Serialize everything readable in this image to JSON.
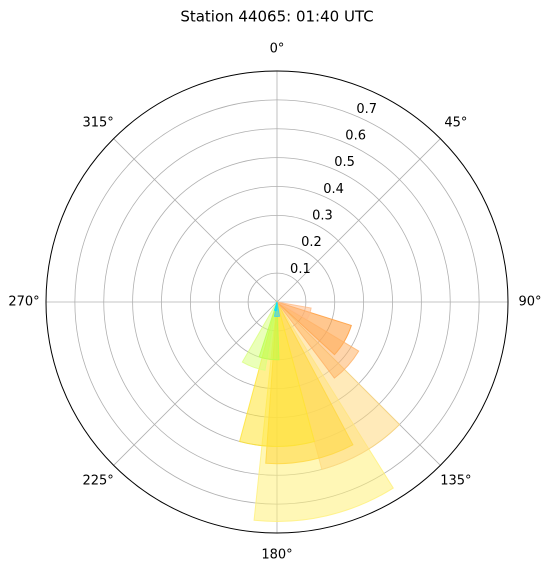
{
  "chart_data": {
    "type": "polar-bar",
    "title": "Station 44065: 01:40 UTC",
    "direction": "clockwise",
    "zero": "N",
    "rlim": [
      0,
      0.8
    ],
    "rticks": [
      0.1,
      0.2,
      0.3,
      0.4,
      0.5,
      0.6,
      0.7
    ],
    "thetaticks": [
      {
        "value": 0,
        "label": "0°"
      },
      {
        "value": 45,
        "label": "45°"
      },
      {
        "value": 90,
        "label": "90°"
      },
      {
        "value": 135,
        "label": "135°"
      },
      {
        "value": 180,
        "label": "180°"
      },
      {
        "value": 225,
        "label": "225°"
      },
      {
        "value": 270,
        "label": "270°"
      },
      {
        "value": 315,
        "label": "315°"
      }
    ],
    "grid": true,
    "theta": [
      167,
      150,
      168,
      180,
      200,
      188,
      120,
      132,
      110,
      180,
      190
    ],
    "widths": [
      38,
      30,
      32,
      30,
      20,
      20,
      25,
      22,
      20,
      20,
      15
    ],
    "values": [
      0.76,
      0.6,
      0.56,
      0.5,
      0.24,
      0.2,
      0.27,
      0.33,
      0.12,
      0.05,
      0.03
    ],
    "colors": [
      "#fff07a",
      "#ffd980",
      "#ffd740",
      "#ffe433",
      "#d9ff80",
      "#b8ff4d",
      "#ff9933",
      "#ffb266",
      "#ffbb88",
      "#33ccff",
      "#00e5ff"
    ],
    "alpha": 0.55
  }
}
